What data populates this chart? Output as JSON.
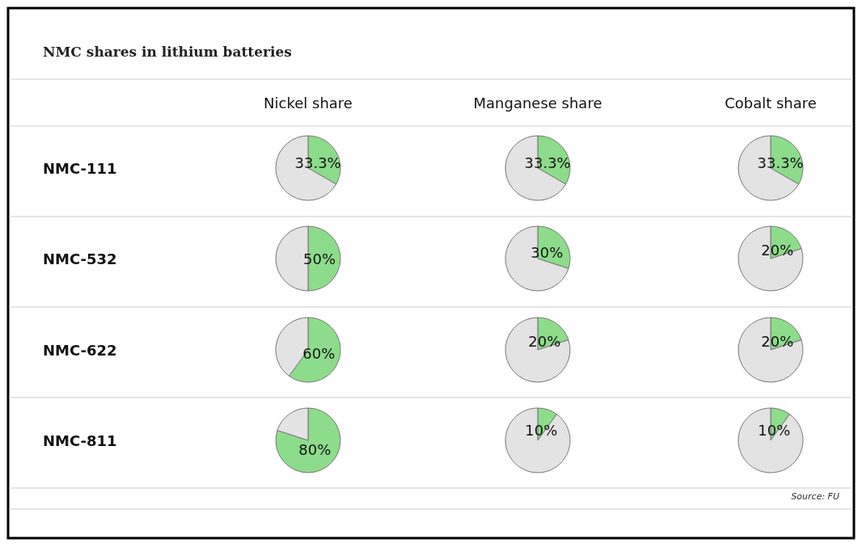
{
  "chart_data": [
    {
      "type": "other",
      "title": "NMC shares in lithium batteries",
      "annotations": [
        "Nickel share",
        "Manganese share",
        "Cobalt share",
        "NMC-111",
        "NMC-532",
        "NMC-622",
        "NMC-811",
        "Source: FU"
      ]
    },
    {
      "type": "pie",
      "categories": [
        null,
        null
      ],
      "values": [
        33.3,
        66.7
      ],
      "colors": [
        "#8ddc8b",
        "#e3e3e3"
      ],
      "value_labels": [
        "33.3%",
        null
      ]
    },
    {
      "type": "pie",
      "categories": [
        null,
        null
      ],
      "values": [
        33.3,
        66.7
      ],
      "colors": [
        "#8ddc8b",
        "#e3e3e3"
      ],
      "value_labels": [
        "33.3%",
        null
      ]
    },
    {
      "type": "pie",
      "categories": [
        null,
        null
      ],
      "values": [
        33.3,
        66.7
      ],
      "colors": [
        "#8ddc8b",
        "#e3e3e3"
      ],
      "value_labels": [
        "33.3%",
        null
      ]
    },
    {
      "type": "pie",
      "categories": [
        null,
        null
      ],
      "values": [
        50,
        50
      ],
      "colors": [
        "#8ddc8b",
        "#e3e3e3"
      ],
      "value_labels": [
        "50%",
        null
      ]
    },
    {
      "type": "pie",
      "categories": [
        null,
        null
      ],
      "values": [
        30,
        70
      ],
      "colors": [
        "#8ddc8b",
        "#e3e3e3"
      ],
      "value_labels": [
        "30%",
        null
      ]
    },
    {
      "type": "pie",
      "categories": [
        null,
        null
      ],
      "values": [
        20,
        80
      ],
      "colors": [
        "#8ddc8b",
        "#e3e3e3"
      ],
      "value_labels": [
        "20%",
        null
      ]
    },
    {
      "type": "pie",
      "categories": [
        null,
        null
      ],
      "values": [
        60,
        40
      ],
      "colors": [
        "#8ddc8b",
        "#e3e3e3"
      ],
      "value_labels": [
        "60%",
        null
      ]
    },
    {
      "type": "pie",
      "categories": [
        null,
        null
      ],
      "values": [
        20,
        80
      ],
      "colors": [
        "#8ddc8b",
        "#e3e3e3"
      ],
      "value_labels": [
        "20%",
        null
      ]
    },
    {
      "type": "pie",
      "categories": [
        null,
        null
      ],
      "values": [
        20,
        80
      ],
      "colors": [
        "#8ddc8b",
        "#e3e3e3"
      ],
      "value_labels": [
        "20%",
        null
      ]
    },
    {
      "type": "pie",
      "categories": [
        null,
        null
      ],
      "values": [
        80,
        20
      ],
      "colors": [
        "#8ddc8b",
        "#e3e3e3"
      ],
      "value_labels": [
        "80%",
        null
      ]
    },
    {
      "type": "pie",
      "categories": [
        null,
        null
      ],
      "values": [
        10,
        90
      ],
      "colors": [
        "#8ddc8b",
        "#e3e3e3"
      ],
      "value_labels": [
        "10%",
        null
      ]
    },
    {
      "type": "pie",
      "categories": [
        null,
        null
      ],
      "values": [
        10,
        90
      ],
      "colors": [
        "#8ddc8b",
        "#e3e3e3"
      ],
      "value_labels": [
        "10%",
        null
      ]
    }
  ]
}
